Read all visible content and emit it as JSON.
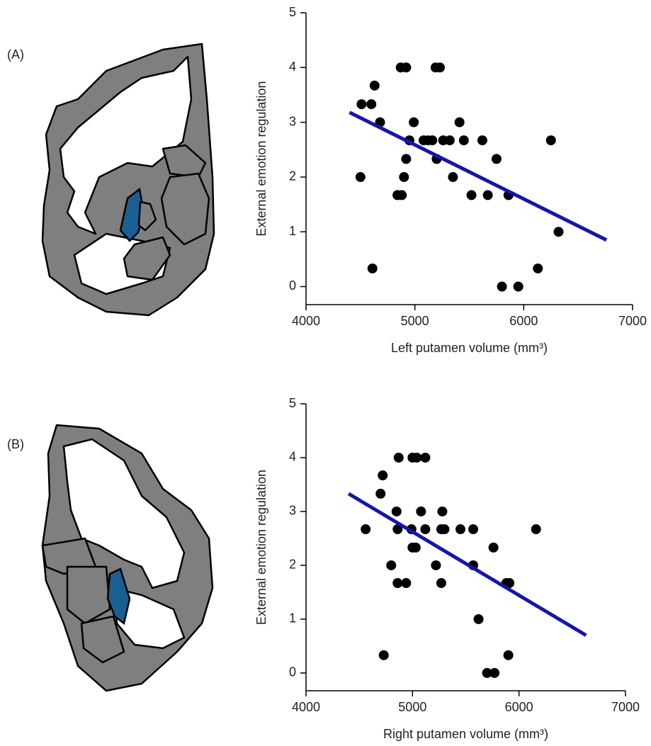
{
  "chart_data": [
    {
      "type": "scatter",
      "panel_label": "(A)",
      "xlabel": "Left putamen volume (mm³)",
      "ylabel": "External emotion regulation",
      "xlim": [
        4000,
        7000
      ],
      "ylim": [
        -0.33,
        5
      ],
      "xticks": [
        4000,
        5000,
        6000,
        7000
      ],
      "yticks": [
        0,
        1,
        2,
        3,
        4,
        5
      ],
      "color": "#000000",
      "x": [
        4500,
        4510,
        4600,
        4630,
        4680,
        4610,
        4870,
        4920,
        4990,
        4920,
        4900,
        4840,
        4880,
        4950,
        5080,
        5120,
        5160,
        5200,
        5190,
        5230,
        5260,
        5320,
        5350,
        5410,
        5450,
        5520,
        5620,
        5670,
        5750,
        5800,
        5860,
        5950,
        6130,
        6250,
        6320
      ],
      "y": [
        2,
        3.33,
        3.33,
        3.67,
        3,
        0.33,
        4,
        4,
        3,
        2.33,
        2,
        1.67,
        1.67,
        2.67,
        2.67,
        2.67,
        2.67,
        2.33,
        4,
        4,
        2.67,
        2.67,
        2,
        3,
        2.67,
        1.67,
        2.67,
        1.67,
        2.33,
        0,
        1.67,
        0,
        0.33,
        2.67,
        1
      ],
      "fit": {
        "x": [
          4400,
          6760
        ],
        "y": [
          3.18,
          0.85
        ],
        "color": "#1414b4"
      }
    },
    {
      "type": "scatter",
      "panel_label": "(B)",
      "xlabel": "Right putamen volume (mm³)",
      "ylabel": "External emotion regulation",
      "xlim": [
        4000,
        7000
      ],
      "ylim": [
        -0.33,
        5
      ],
      "xticks": [
        4000,
        5000,
        6000,
        7000
      ],
      "yticks": [
        0,
        1,
        2,
        3,
        4,
        5
      ],
      "color": "#000000",
      "x": [
        4560,
        4700,
        4720,
        4730,
        4800,
        4850,
        4860,
        4870,
        4860,
        4940,
        4990,
        5000,
        5040,
        5120,
        5000,
        5030,
        5080,
        5120,
        5220,
        5270,
        5280,
        5270,
        5300,
        5450,
        5570,
        5570,
        5620,
        5700,
        5760,
        5770,
        5880,
        5910,
        5900,
        6160
      ],
      "y": [
        2.67,
        3.33,
        3.67,
        0.33,
        2,
        3,
        2.67,
        4,
        1.67,
        1.67,
        2.67,
        4,
        4,
        4,
        2.33,
        2.33,
        3,
        2.67,
        2,
        1.67,
        3,
        2.67,
        2.67,
        2.67,
        2.67,
        2,
        1,
        0,
        2.33,
        0,
        1.67,
        1.67,
        0.33,
        2.67
      ],
      "fit": {
        "x": [
          4400,
          6630
        ],
        "y": [
          3.33,
          0.7
        ],
        "color": "#1414b4"
      }
    }
  ]
}
